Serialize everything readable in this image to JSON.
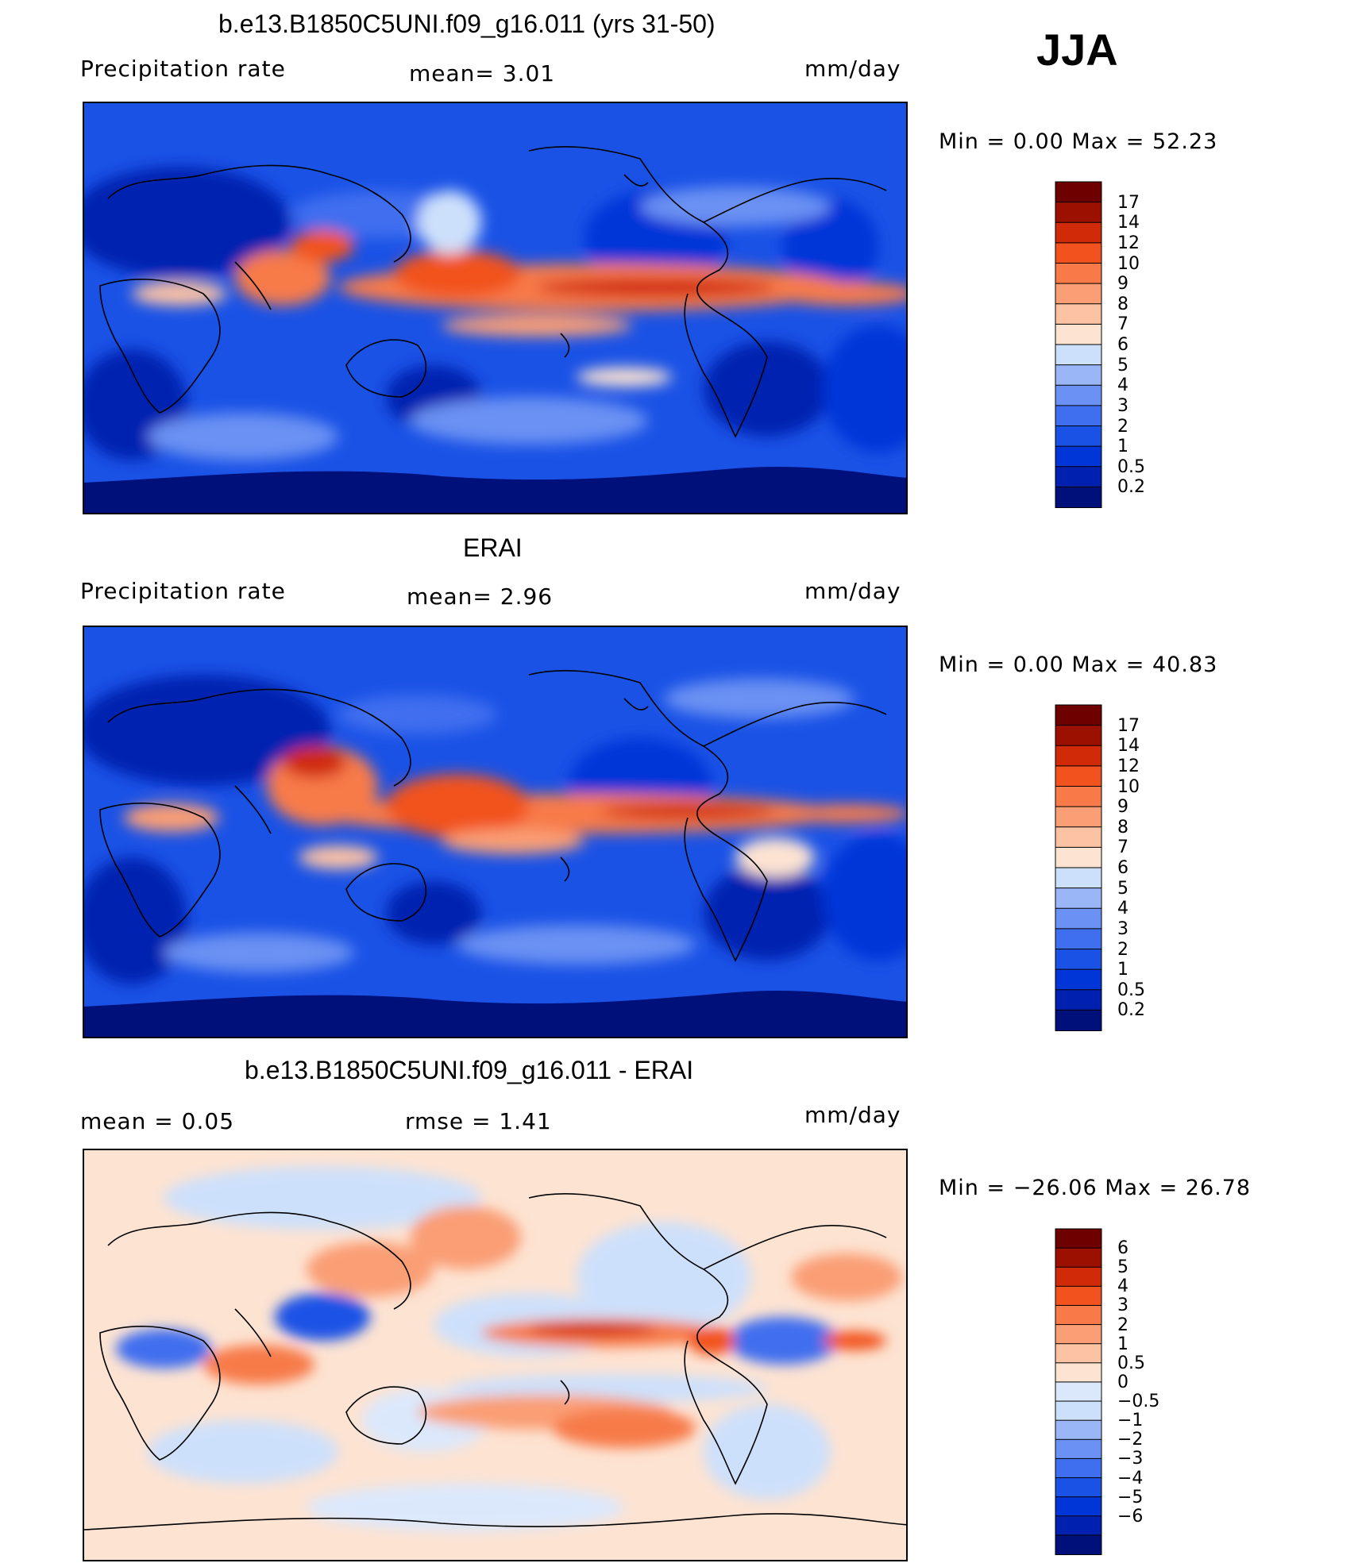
{
  "season": "JJA",
  "panels": [
    {
      "title": "b.e13.B1850C5UNI.f09_g16.011 (yrs 31-50)",
      "left_label": "Precipitation  rate",
      "center_label": "mean=     3.01",
      "units": "mm/day",
      "minmax": "Min  =      0.00  Max  =     52.23",
      "colorbar_labels": [
        "17",
        "14",
        "12",
        "10",
        "9",
        "8",
        "7",
        "6",
        "5",
        "4",
        "3",
        "2",
        "1",
        "0.5",
        "0.2"
      ]
    },
    {
      "title": "ERAI",
      "left_label": "Precipitation  rate",
      "center_label": "mean=     2.96",
      "units": "mm/day",
      "minmax": "Min  =      0.00  Max  =     40.83",
      "colorbar_labels": [
        "17",
        "14",
        "12",
        "10",
        "9",
        "8",
        "7",
        "6",
        "5",
        "4",
        "3",
        "2",
        "1",
        "0.5",
        "0.2"
      ]
    },
    {
      "title": "b.e13.B1850C5UNI.f09_g16.011 - ERAI",
      "left_label": "mean  =      0.05",
      "center_label": "rmse  =      1.41",
      "units": "mm/day",
      "minmax": "Min  = −26.06  Max  =     26.78",
      "colorbar_labels": [
        "6",
        "5",
        "4",
        "3",
        "2",
        "1",
        "0.5",
        "0",
        "−0.5",
        "−1",
        "−2",
        "−3",
        "−4",
        "−5",
        "−6"
      ]
    }
  ],
  "colors": {
    "precip_scale": [
      "#00107a",
      "#0020b0",
      "#0036d8",
      "#1a52e6",
      "#3f6eef",
      "#6a91f3",
      "#9ab6f7",
      "#cde0fb",
      "#fde3d2",
      "#fcc2a4",
      "#fa9e75",
      "#f77a48",
      "#f2521e",
      "#d02a08",
      "#9c1000",
      "#6e0000"
    ],
    "diff_scale": [
      "#00107a",
      "#0020b0",
      "#0036d8",
      "#1a52e6",
      "#3f6eef",
      "#6a91f3",
      "#9ab6f7",
      "#cde0fb",
      "#dbe8fc",
      "#fde3d2",
      "#fcc2a4",
      "#fa9e75",
      "#f77a48",
      "#f2521e",
      "#d02a08",
      "#9c1000",
      "#6e0000"
    ]
  },
  "chart_data": [
    {
      "type": "heatmap",
      "title": "b.e13.B1850C5UNI.f09_g16.011 (yrs 31-50)",
      "variable": "Precipitation  rate",
      "units": "mm/day",
      "mean": 3.01,
      "min": 0.0,
      "max": 52.23,
      "contour_levels": [
        0.2,
        0.5,
        1,
        2,
        3,
        4,
        5,
        6,
        7,
        8,
        9,
        10,
        12,
        14,
        17
      ]
    },
    {
      "type": "heatmap",
      "title": "ERAI",
      "variable": "Precipitation  rate",
      "units": "mm/day",
      "mean": 2.96,
      "min": 0.0,
      "max": 40.83,
      "contour_levels": [
        0.2,
        0.5,
        1,
        2,
        3,
        4,
        5,
        6,
        7,
        8,
        9,
        10,
        12,
        14,
        17
      ]
    },
    {
      "type": "heatmap",
      "title": "b.e13.B1850C5UNI.f09_g16.011 - ERAI",
      "units": "mm/day",
      "mean": 0.05,
      "rmse": 1.41,
      "min": -26.06,
      "max": 26.78,
      "contour_levels": [
        -6,
        -5,
        -4,
        -3,
        -2,
        -1,
        -0.5,
        0,
        0.5,
        1,
        2,
        3,
        4,
        5,
        6
      ]
    }
  ]
}
